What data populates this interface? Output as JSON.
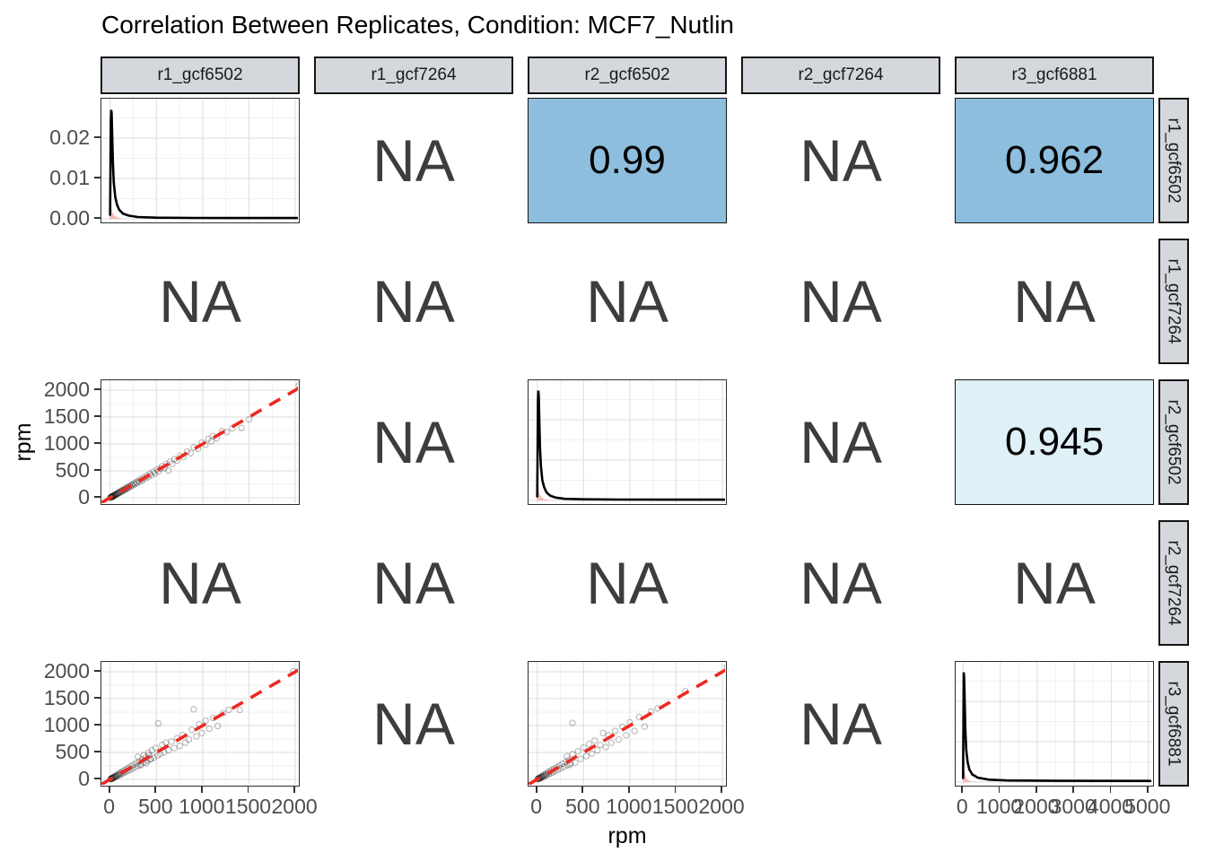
{
  "title": "Correlation Between Replicates, Condition: MCF7_Nutlin",
  "condition": "MCF7_Nutlin",
  "colors": {
    "strip_bg": "#d4d7dc",
    "strip_border": "#151515",
    "panel_border": "#2e2e2e",
    "grid_major": "#e3e3e3",
    "grid_minor": "#f1f1f1",
    "corr_strong_blue": "#8ebedd",
    "corr_pale_blue": "#dff0f7",
    "na_text": "#3d3d3d",
    "red_dash_line": "#ec2a21",
    "density_line": "#000000",
    "density_fill_pink": "rgba(246,122,116,0.5)",
    "scatter_point": "rgba(0,0,0,0.28)",
    "tick_text": "#4d4d4d"
  },
  "chart_data": {
    "type": "scatterplot-matrix",
    "title": "Correlation Between Replicates, Condition: MCF7_Nutlin",
    "x_title": "rpm",
    "y_title": "rpm",
    "na_label": "NA",
    "variables": [
      "r1_gcf6502",
      "r1_gcf7264",
      "r2_gcf6502",
      "r2_gcf7264",
      "r3_gcf6881"
    ],
    "correlations": [
      {
        "row_var": "r1_gcf6502",
        "col_var": "r2_gcf6502",
        "value": "0.99"
      },
      {
        "row_var": "r1_gcf6502",
        "col_var": "r3_gcf6881",
        "value": "0.962"
      },
      {
        "row_var": "r2_gcf6502",
        "col_var": "r3_gcf6881",
        "value": "0.945"
      }
    ],
    "axes": {
      "density_y": {
        "values": [
          0,
          0.01,
          0.02
        ],
        "labels": [
          "0.00",
          "0.01",
          "0.02"
        ],
        "minor": [
          0.005,
          0.015,
          0.025
        ]
      },
      "rpm_y": {
        "values": [
          0,
          500,
          1000,
          1500,
          2000
        ],
        "labels": [
          "0",
          "500",
          "1000",
          "1500",
          "2000"
        ],
        "minor": [
          250,
          750,
          1250,
          1750
        ]
      },
      "rpm_x": {
        "values": [
          0,
          500,
          1000,
          1500,
          2000
        ],
        "labels": [
          "0",
          "500",
          "1000",
          "1500",
          "2000"
        ],
        "minor": [
          250,
          750,
          1250,
          1750
        ]
      },
      "density5_x": {
        "values": [
          0,
          1000,
          2000,
          3000,
          4000,
          5000
        ],
        "labels": [
          "0",
          "1000",
          "2000",
          "3000",
          "4000",
          "5000"
        ],
        "minor": [
          500,
          1500,
          2500,
          3500,
          4500
        ]
      }
    },
    "cells": [
      [
        {
          "type": "density",
          "id": "d1"
        },
        {
          "type": "na"
        },
        {
          "type": "corr",
          "value": "0.99",
          "fill": "#8ebedd"
        },
        {
          "type": "na"
        },
        {
          "type": "corr",
          "value": "0.962",
          "fill": "#8ebedd"
        }
      ],
      [
        {
          "type": "na"
        },
        {
          "type": "na"
        },
        {
          "type": "na"
        },
        {
          "type": "na"
        },
        {
          "type": "na"
        }
      ],
      [
        {
          "type": "scatter",
          "id": "s31"
        },
        {
          "type": "na"
        },
        {
          "type": "density",
          "id": "d3"
        },
        {
          "type": "na"
        },
        {
          "type": "corr",
          "value": "0.945",
          "fill": "#dff0f7"
        }
      ],
      [
        {
          "type": "na"
        },
        {
          "type": "na"
        },
        {
          "type": "na"
        },
        {
          "type": "na"
        },
        {
          "type": "na"
        }
      ],
      [
        {
          "type": "scatter",
          "id": "s51"
        },
        {
          "type": "na"
        },
        {
          "type": "scatter",
          "id": "s53"
        },
        {
          "type": "na"
        },
        {
          "type": "density",
          "id": "d5"
        }
      ]
    ],
    "densities": {
      "d1": {
        "curve": [
          0,
          0.001,
          4,
          0.012,
          8,
          0.024,
          12,
          0.027,
          16,
          0.0262,
          22,
          0.021,
          30,
          0.014,
          40,
          0.009,
          55,
          0.0055,
          75,
          0.0035,
          100,
          0.0022,
          140,
          0.0013,
          200,
          0.0008,
          300,
          0.00045,
          500,
          0.0003,
          900,
          0.00022,
          1400,
          0.0002,
          2050,
          0.0002
        ],
        "pink": [
          0,
          0.0001,
          2,
          0.003,
          6,
          0.0045,
          12,
          0.0035,
          20,
          0.0022,
          32,
          0.0013,
          50,
          0.0007,
          80,
          0.0003,
          130,
          0.0001,
          220,
          0
        ]
      },
      "d3": {
        "curve": [
          0,
          0.001,
          4,
          0.012,
          8,
          0.0245,
          12,
          0.0272,
          16,
          0.026,
          22,
          0.02,
          30,
          0.013,
          40,
          0.0085,
          55,
          0.005,
          75,
          0.0033,
          100,
          0.002,
          140,
          0.0012,
          200,
          0.0007,
          300,
          0.0004,
          500,
          0.0003,
          900,
          0.00022,
          1400,
          0.0002,
          2050,
          0.0002
        ],
        "pink": [
          0,
          0.0001,
          2,
          0.003,
          6,
          0.0045,
          12,
          0.0035,
          20,
          0.0022,
          32,
          0.0013,
          50,
          0.0007,
          80,
          0.0003,
          130,
          0.0001,
          220,
          0
        ]
      },
      "d5": {
        "curve": [
          0,
          0.001,
          10,
          0.016,
          18,
          0.0272,
          26,
          0.0262,
          40,
          0.021,
          60,
          0.013,
          85,
          0.008,
          120,
          0.005,
          170,
          0.0031,
          250,
          0.0019,
          400,
          0.0011,
          700,
          0.0006,
          1200,
          0.0004,
          2500,
          0.00032,
          5050,
          0.0003
        ],
        "pink": [
          0,
          0.0001,
          5,
          0.0038,
          14,
          0.005,
          30,
          0.0035,
          55,
          0.002,
          90,
          0.001,
          150,
          0.0004,
          260,
          0.0001,
          420,
          0
        ]
      }
    },
    "scatters": {
      "s31": {
        "x_var": "r1_gcf6502",
        "y_var": "r2_gcf6502",
        "points": [
          3,
          5,
          6,
          4,
          9,
          11,
          12,
          9,
          15,
          17,
          18,
          14,
          21,
          23,
          24,
          20,
          27,
          30,
          30,
          25,
          34,
          37,
          38,
          32,
          42,
          45,
          46,
          40,
          50,
          54,
          55,
          48,
          60,
          64,
          65,
          57,
          70,
          75,
          76,
          68,
          82,
          87,
          88,
          79,
          95,
          101,
          101,
          92,
          108,
          115,
          115,
          105,
          123,
          130,
          130,
          119,
          138,
          146,
          146,
          134,
          155,
          163,
          163,
          150,
          172,
          181,
          181,
          167,
          191,
          200,
          200,
          185,
          211,
          221,
          221,
          205,
          232,
          243,
          243,
          226,
          255,
          267,
          267,
          248,
          280,
          292,
          292,
          272,
          306,
          319,
          319,
          297,
          334,
          348,
          348,
          324,
          364,
          379,
          379,
          353,
          396,
          412,
          412,
          384,
          430,
          447,
          447,
          417,
          466,
          484,
          484,
          452,
          504,
          522,
          522,
          489,
          545,
          540,
          560,
          585,
          585,
          550,
          610,
          632,
          630,
          505,
          648,
          670,
          670,
          628,
          695,
          718,
          725,
          690,
          755,
          780,
          790,
          755,
          830,
          858,
          870,
          830,
          905,
          938,
          950,
          908,
          990,
          1025,
          1030,
          985,
          1060,
          1095,
          1095,
          1050,
          1110,
          1148,
          1150,
          1105,
          1210,
          1240,
          1260,
          1220,
          1320,
          1290,
          1420,
          1300,
          1500,
          1455,
          2040,
          2090
        ]
      },
      "s51": {
        "x_var": "r1_gcf6502",
        "y_var": "r3_gcf6881",
        "points": [
          4,
          7,
          7,
          3,
          10,
          14,
          14,
          8,
          18,
          22,
          22,
          14,
          26,
          31,
          31,
          21,
          36,
          42,
          41,
          30,
          46,
          53,
          52,
          39,
          58,
          66,
          64,
          49,
          71,
          80,
          78,
          60,
          86,
          96,
          93,
          73,
          101,
          113,
          109,
          87,
          118,
          131,
          127,
          102,
          137,
          151,
          146,
          118,
          157,
          172,
          167,
          136,
          179,
          195,
          190,
          155,
          202,
          219,
          214,
          176,
          227,
          245,
          240,
          199,
          254,
          272,
          268,
          224,
          283,
          302,
          298,
          251,
          314,
          334,
          330,
          280,
          347,
          368,
          364,
          311,
          382,
          404,
          400,
          345,
          420,
          443,
          440,
          382,
          300,
          420,
          330,
          262,
          362,
          452,
          392,
          304,
          414,
          492,
          434,
          372,
          452,
          542,
          472,
          404,
          492,
          582,
          512,
          444,
          520,
          1042,
          542,
          472,
          562,
          642,
          582,
          502,
          602,
          682,
          632,
          542,
          662,
          702,
          692,
          582,
          722,
          762,
          752,
          622,
          782,
          822,
          812,
          682,
          852,
          742,
          882,
          922,
          902,
          1302,
          932,
          802,
          962,
          1022,
          992,
          862,
          1032,
          1092,
          1072,
          942,
          1112,
          1142,
          1162,
          992,
          1222,
          1232,
          1282,
          1292,
          1400,
          1290,
          1980,
          2010
        ]
      },
      "s53": {
        "x_var": "r2_gcf6502",
        "y_var": "r3_gcf6881",
        "points": [
          4,
          6,
          8,
          4,
          12,
          15,
          16,
          10,
          20,
          24,
          25,
          16,
          30,
          36,
          35,
          25,
          41,
          48,
          46,
          33,
          52,
          60,
          58,
          44,
          65,
          75,
          72,
          54,
          80,
          92,
          88,
          66,
          96,
          110,
          105,
          80,
          115,
          130,
          125,
          96,
          136,
          152,
          147,
          114,
          158,
          175,
          170,
          134,
          183,
          200,
          196,
          155,
          210,
          228,
          224,
          178,
          240,
          258,
          255,
          204,
          272,
          290,
          288,
          232,
          306,
          325,
          323,
          262,
          342,
          362,
          360,
          295,
          380,
          1050,
          320,
          430,
          350,
          270,
          382,
          470,
          410,
          310,
          440,
          520,
          470,
          380,
          500,
          590,
          530,
          430,
          560,
          660,
          590,
          480,
          620,
          720,
          650,
          540,
          680,
          640,
          710,
          860,
          740,
          600,
          770,
          820,
          800,
          680,
          840,
          900,
          880,
          740,
          920,
          980,
          960,
          820,
          1000,
          1060,
          1050,
          900,
          1100,
          1160,
          1160,
          980,
          1230,
          1260,
          1300,
          1320,
          1600,
          1640,
          2050,
          2100
        ]
      }
    }
  }
}
